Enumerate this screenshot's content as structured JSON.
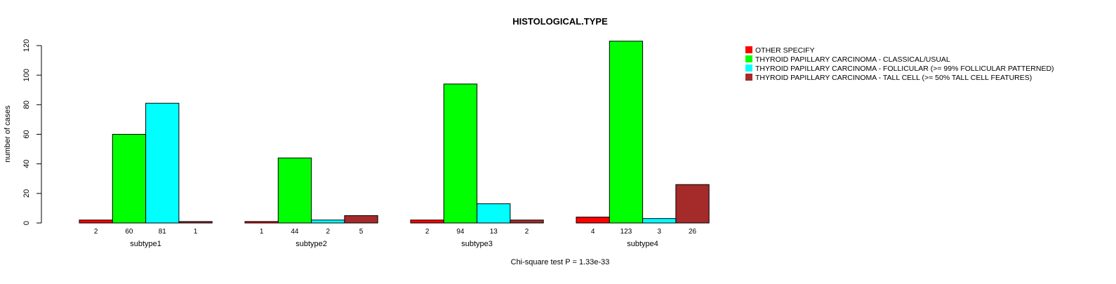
{
  "chart_data": {
    "type": "bar",
    "title": "HISTOLOGICAL.TYPE",
    "xlabel": "Chi-square test P = 1.33e-33",
    "ylabel": "number of cases",
    "ylim": [
      0,
      120
    ],
    "yticks": [
      0,
      20,
      40,
      60,
      80,
      100,
      120
    ],
    "grid": false,
    "legend_position": "top-right",
    "categories": [
      "subtype1",
      "subtype2",
      "subtype3",
      "subtype4"
    ],
    "series": [
      {
        "name": "OTHER  SPECIFY",
        "color": "#ff0000",
        "values": [
          2,
          1,
          2,
          4
        ]
      },
      {
        "name": "THYROID PAPILLARY CARCINOMA - CLASSICAL/USUAL",
        "color": "#00ff00",
        "values": [
          60,
          44,
          94,
          123
        ]
      },
      {
        "name": "THYROID PAPILLARY CARCINOMA - FOLLICULAR (>= 99% FOLLICULAR PATTERNED)",
        "color": "#00ffff",
        "values": [
          81,
          2,
          13,
          3
        ]
      },
      {
        "name": "THYROID PAPILLARY CARCINOMA - TALL CELL (>= 50% TALL CELL FEATURES)",
        "color": "#a52a2a",
        "values": [
          1,
          5,
          2,
          26
        ]
      }
    ]
  }
}
